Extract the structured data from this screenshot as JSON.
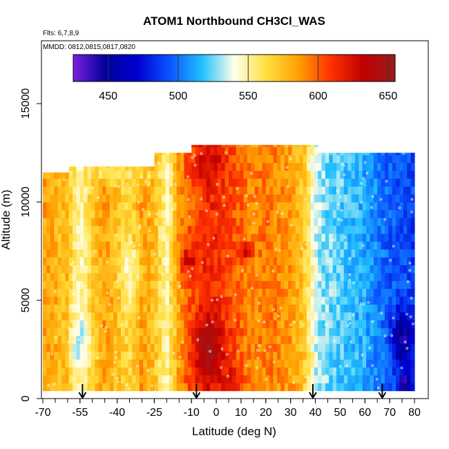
{
  "chart_data": {
    "type": "heatmap",
    "title": "ATOM1 Northbound CH3Cl_WAS",
    "flights_label": "Flts: 6,7,8,9",
    "dates_label": "MMDD: 0812,0815,0817,0820",
    "xlabel": "Latitude (deg N)",
    "ylabel": "Altitude (m)",
    "xlim": [
      -72,
      86
    ],
    "ylim": [
      0,
      17500
    ],
    "x_ticks": [
      -70,
      -55,
      -40,
      -25,
      -10,
      0,
      10,
      20,
      30,
      40,
      50,
      60,
      70,
      80
    ],
    "x_tick_labels": [
      "-70",
      "-55",
      "-40",
      "-25",
      "-10",
      "0",
      "10",
      "20",
      "30",
      "40",
      "50",
      "60",
      "70",
      "80"
    ],
    "y_ticks": [
      0,
      5000,
      10000,
      15000
    ],
    "y_tick_labels": [
      "0",
      "5000",
      "10000",
      "15000"
    ],
    "colorbar": {
      "range": [
        425,
        655
      ],
      "ticks": [
        450,
        500,
        550,
        600,
        650
      ],
      "tick_labels": [
        "450",
        "500",
        "550",
        "600",
        "650"
      ],
      "colors": [
        "#7a1fe0",
        "#00009a",
        "#0000d0",
        "#0a55ff",
        "#20c0ff",
        "#ffffe8",
        "#ffe040",
        "#ffa000",
        "#ff3000",
        "#c00000",
        "#9a1c1c"
      ]
    },
    "column_tops": [
      {
        "lat": -70,
        "top": 11500
      },
      {
        "lat": -62,
        "top": 11500
      },
      {
        "lat": -60,
        "top": 11800
      },
      {
        "lat": -55,
        "top": 11800
      },
      {
        "lat": -50,
        "top": 11800
      },
      {
        "lat": -40,
        "top": 11800
      },
      {
        "lat": -30,
        "top": 11800
      },
      {
        "lat": -25,
        "top": 12500
      },
      {
        "lat": -13,
        "top": 12500
      },
      {
        "lat": -10,
        "top": 12900
      },
      {
        "lat": 39,
        "top": 12900
      },
      {
        "lat": 40,
        "top": 12500
      },
      {
        "lat": 76,
        "top": 12500
      },
      {
        "lat": 79,
        "top": 11300
      },
      {
        "lat": 80,
        "top": 11300
      }
    ],
    "column_bottom_alt": 400,
    "lat_profile": [
      {
        "lat": -70,
        "value": 585
      },
      {
        "lat": -60,
        "value": 575
      },
      {
        "lat": -55,
        "value": 545
      },
      {
        "lat": -50,
        "value": 572
      },
      {
        "lat": -45,
        "value": 585
      },
      {
        "lat": -40,
        "value": 575
      },
      {
        "lat": -35,
        "value": 565
      },
      {
        "lat": -30,
        "value": 585
      },
      {
        "lat": -25,
        "value": 575
      },
      {
        "lat": -20,
        "value": 548
      },
      {
        "lat": -15,
        "value": 585
      },
      {
        "lat": -12,
        "value": 598
      },
      {
        "lat": -8,
        "value": 605
      },
      {
        "lat": -3,
        "value": 615
      },
      {
        "lat": 0,
        "value": 612
      },
      {
        "lat": 5,
        "value": 605
      },
      {
        "lat": 10,
        "value": 598
      },
      {
        "lat": 15,
        "value": 590
      },
      {
        "lat": 20,
        "value": 595
      },
      {
        "lat": 25,
        "value": 590
      },
      {
        "lat": 30,
        "value": 585
      },
      {
        "lat": 33,
        "value": 578
      },
      {
        "lat": 36,
        "value": 568
      },
      {
        "lat": 38,
        "value": 552
      },
      {
        "lat": 40,
        "value": 535
      },
      {
        "lat": 43,
        "value": 528
      },
      {
        "lat": 50,
        "value": 522
      },
      {
        "lat": 60,
        "value": 512
      },
      {
        "lat": 70,
        "value": 495
      },
      {
        "lat": 75,
        "value": 492
      },
      {
        "lat": 80,
        "value": 488
      }
    ],
    "hotspots": [
      {
        "lat": -3,
        "alt": 2500,
        "value": 650,
        "rlat": 6,
        "ralt": 1600
      },
      {
        "lat": -3,
        "alt": 12000,
        "value": 630,
        "rlat": 6,
        "ralt": 900
      },
      {
        "lat": -11,
        "alt": 7000,
        "value": 625,
        "rlat": 4,
        "ralt": 900
      },
      {
        "lat": 12,
        "alt": 7500,
        "value": 630,
        "rlat": 3,
        "ralt": 500
      },
      {
        "lat": 5,
        "alt": 1000,
        "value": 622,
        "rlat": 5,
        "ralt": 800
      },
      {
        "lat": -35,
        "alt": 6500,
        "value": 545,
        "rlat": 4,
        "ralt": 1500
      },
      {
        "lat": -55,
        "alt": 3000,
        "value": 535,
        "rlat": 4,
        "ralt": 1500
      },
      {
        "lat": 75,
        "alt": 3000,
        "value": 445,
        "rlat": 4,
        "ralt": 1500
      },
      {
        "lat": 76,
        "alt": 800,
        "value": 430,
        "rlat": 2,
        "ralt": 500
      },
      {
        "lat": -40,
        "alt": 11400,
        "value": 555,
        "rlat": 12,
        "ralt": 400
      }
    ],
    "arrows_lat": [
      -54,
      -8,
      39,
      67
    ]
  }
}
